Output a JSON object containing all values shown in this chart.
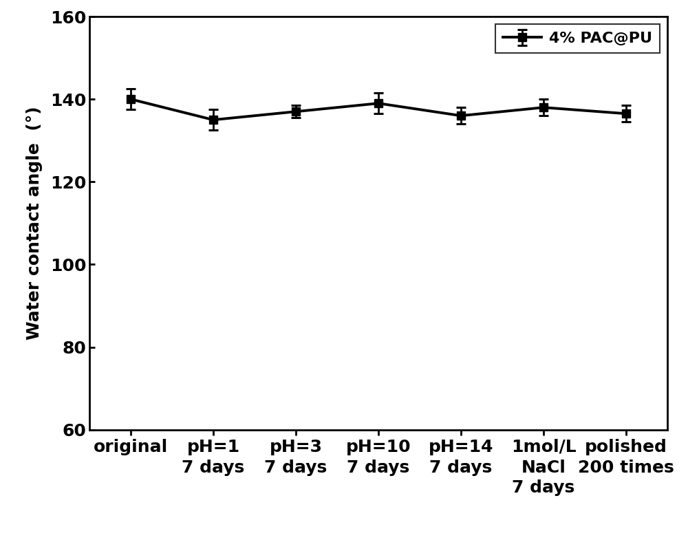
{
  "x_labels": [
    "original",
    "pH=1\n7 days",
    "pH=3\n7 days",
    "pH=10\n7 days",
    "pH=14\n7 days",
    "1mol/L\nNaCl\n7 days",
    "polished\n200 times"
  ],
  "y_values": [
    140.0,
    135.0,
    137.0,
    139.0,
    136.0,
    138.0,
    136.5
  ],
  "y_errors": [
    2.5,
    2.5,
    1.5,
    2.5,
    2.0,
    2.0,
    2.0
  ],
  "ylabel": "Water contact angle  (°)",
  "ylim": [
    60,
    160
  ],
  "yticks": [
    60,
    80,
    100,
    120,
    140,
    160
  ],
  "legend_label": "4% PAC@PU",
  "line_color": "#000000",
  "marker": "s",
  "marker_size": 8,
  "line_width": 2.8,
  "capsize": 5,
  "background_color": "#ffffff",
  "label_fontsize": 18,
  "tick_fontsize": 18,
  "legend_fontsize": 16,
  "fig_width": 10.0,
  "fig_height": 8.01
}
